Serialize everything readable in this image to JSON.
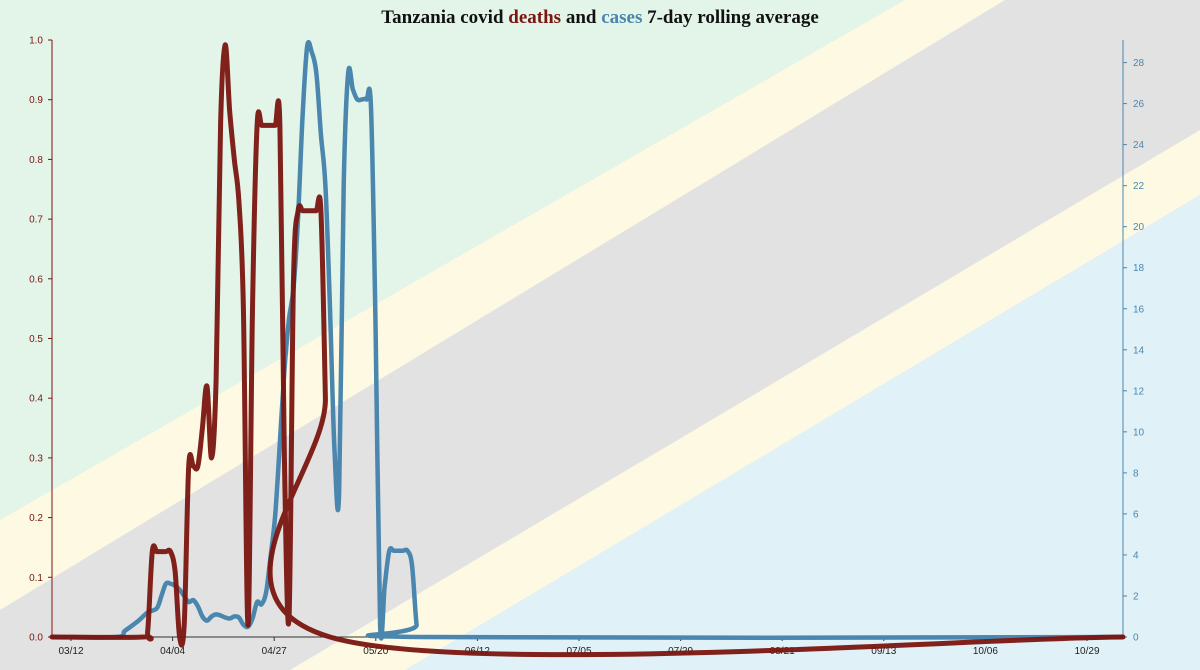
{
  "title": {
    "prefix": "Tanzania covid",
    "word_deaths": "deaths",
    "word_and": "and",
    "word_cases": "cases",
    "suffix": "7-day rolling average"
  },
  "colors": {
    "deaths": "#7a1510",
    "cases": "#4a86ad",
    "flag_green": "#e3f5e8",
    "flag_yellow": "#fdf9e2",
    "flag_gray": "#e2e2e2",
    "flag_blue": "#e0f1f8"
  },
  "chart_data": {
    "type": "line",
    "title": "Tanzania covid deaths and cases 7-day rolling average",
    "x_ticks": [
      "03/12",
      "04/04",
      "04/27",
      "05/20",
      "06/12",
      "07/05",
      "07/29",
      "08/21",
      "09/13",
      "10/06",
      "10/29"
    ],
    "y_left": {
      "label": "",
      "range": [
        0,
        1.0
      ],
      "ticks": [
        "0.0",
        "0.1",
        "0.2",
        "0.3",
        "0.4",
        "0.5",
        "0.6",
        "0.7",
        "0.8",
        "0.9",
        "1.0"
      ]
    },
    "y_right": {
      "label": "",
      "range": [
        0,
        29.1
      ],
      "ticks": [
        "0",
        "2",
        "4",
        "6",
        "8",
        "10",
        "12",
        "14",
        "16",
        "18",
        "20",
        "22",
        "24",
        "26",
        "28"
      ]
    },
    "grid": false,
    "series": [
      {
        "name": "cases",
        "axis": "right",
        "points": [
          [
            0,
            0
          ],
          [
            14,
            0
          ],
          [
            16,
            0.3
          ],
          [
            19,
            0.8
          ],
          [
            21,
            1.2
          ],
          [
            23,
            1.4
          ],
          [
            24,
            2.0
          ],
          [
            25,
            2.6
          ],
          [
            26,
            2.6
          ],
          [
            27,
            2.5
          ],
          [
            28,
            2.3
          ],
          [
            29,
            2.0
          ],
          [
            30,
            1.7
          ],
          [
            31,
            1.8
          ],
          [
            32,
            1.5
          ],
          [
            33,
            1.0
          ],
          [
            34,
            0.8
          ],
          [
            35,
            1.0
          ],
          [
            36,
            1.1
          ],
          [
            37,
            1.05
          ],
          [
            38,
            0.95
          ],
          [
            39,
            0.9
          ],
          [
            40,
            1.0
          ],
          [
            41,
            0.95
          ],
          [
            42,
            0.6
          ],
          [
            43,
            0.5
          ],
          [
            44,
            0.9
          ],
          [
            45,
            1.7
          ],
          [
            46,
            1.6
          ],
          [
            47,
            2.2
          ],
          [
            48,
            4.0
          ],
          [
            49,
            6.0
          ],
          [
            50,
            9.5
          ],
          [
            51,
            13.0
          ],
          [
            52,
            15.5
          ],
          [
            53,
            17.0
          ],
          [
            54,
            20.5
          ],
          [
            55,
            25.5
          ],
          [
            56,
            28.8
          ],
          [
            57,
            28.5
          ],
          [
            58,
            27.5
          ],
          [
            59,
            24.5
          ],
          [
            60,
            22.0
          ],
          [
            61,
            16.0
          ],
          [
            62,
            9.0
          ],
          [
            63,
            7.0
          ],
          [
            64,
            22.0
          ],
          [
            65,
            27.5
          ],
          [
            66,
            26.7
          ],
          [
            67,
            26.2
          ],
          [
            68,
            26.2
          ],
          [
            69,
            26.2
          ],
          [
            70,
            25.8
          ],
          [
            71,
            15.0
          ],
          [
            72,
            0.6
          ],
          [
            73,
            2.5
          ],
          [
            74,
            4.2
          ],
          [
            75,
            4.2
          ],
          [
            76,
            4.2
          ],
          [
            77,
            4.2
          ],
          [
            78,
            4.2
          ],
          [
            79,
            3.5
          ],
          [
            80,
            0.6
          ],
          [
            81,
            0
          ],
          [
            235,
            0
          ]
        ]
      },
      {
        "name": "deaths",
        "axis": "left",
        "points": [
          [
            0,
            0
          ],
          [
            20,
            0
          ],
          [
            21,
            0.01
          ],
          [
            22,
            0.143
          ],
          [
            23,
            0.143
          ],
          [
            24,
            0.143
          ],
          [
            25,
            0.143
          ],
          [
            26,
            0.143
          ],
          [
            27,
            0.11
          ],
          [
            28,
            0
          ],
          [
            29,
            0.02
          ],
          [
            30,
            0.286
          ],
          [
            31,
            0.286
          ],
          [
            32,
            0.286
          ],
          [
            33,
            0.35
          ],
          [
            34,
            0.42
          ],
          [
            35,
            0.3
          ],
          [
            36,
            0.43
          ],
          [
            37,
            0.86
          ],
          [
            38,
            0.992
          ],
          [
            39,
            0.88
          ],
          [
            40,
            0.8
          ],
          [
            41,
            0.73
          ],
          [
            42,
            0.55
          ],
          [
            43,
            0.02
          ],
          [
            44,
            0.55
          ],
          [
            45,
            0.857
          ],
          [
            46,
            0.857
          ],
          [
            47,
            0.857
          ],
          [
            48,
            0.857
          ],
          [
            49,
            0.857
          ],
          [
            50,
            0.857
          ],
          [
            51,
            0.3
          ],
          [
            52,
            0.03
          ],
          [
            53,
            0.6
          ],
          [
            54,
            0.714
          ],
          [
            55,
            0.714
          ],
          [
            56,
            0.714
          ],
          [
            57,
            0.714
          ],
          [
            58,
            0.714
          ],
          [
            59,
            0.714
          ],
          [
            60,
            0.4
          ],
          [
            61,
            0.0
          ],
          [
            235,
            0
          ]
        ]
      }
    ]
  }
}
